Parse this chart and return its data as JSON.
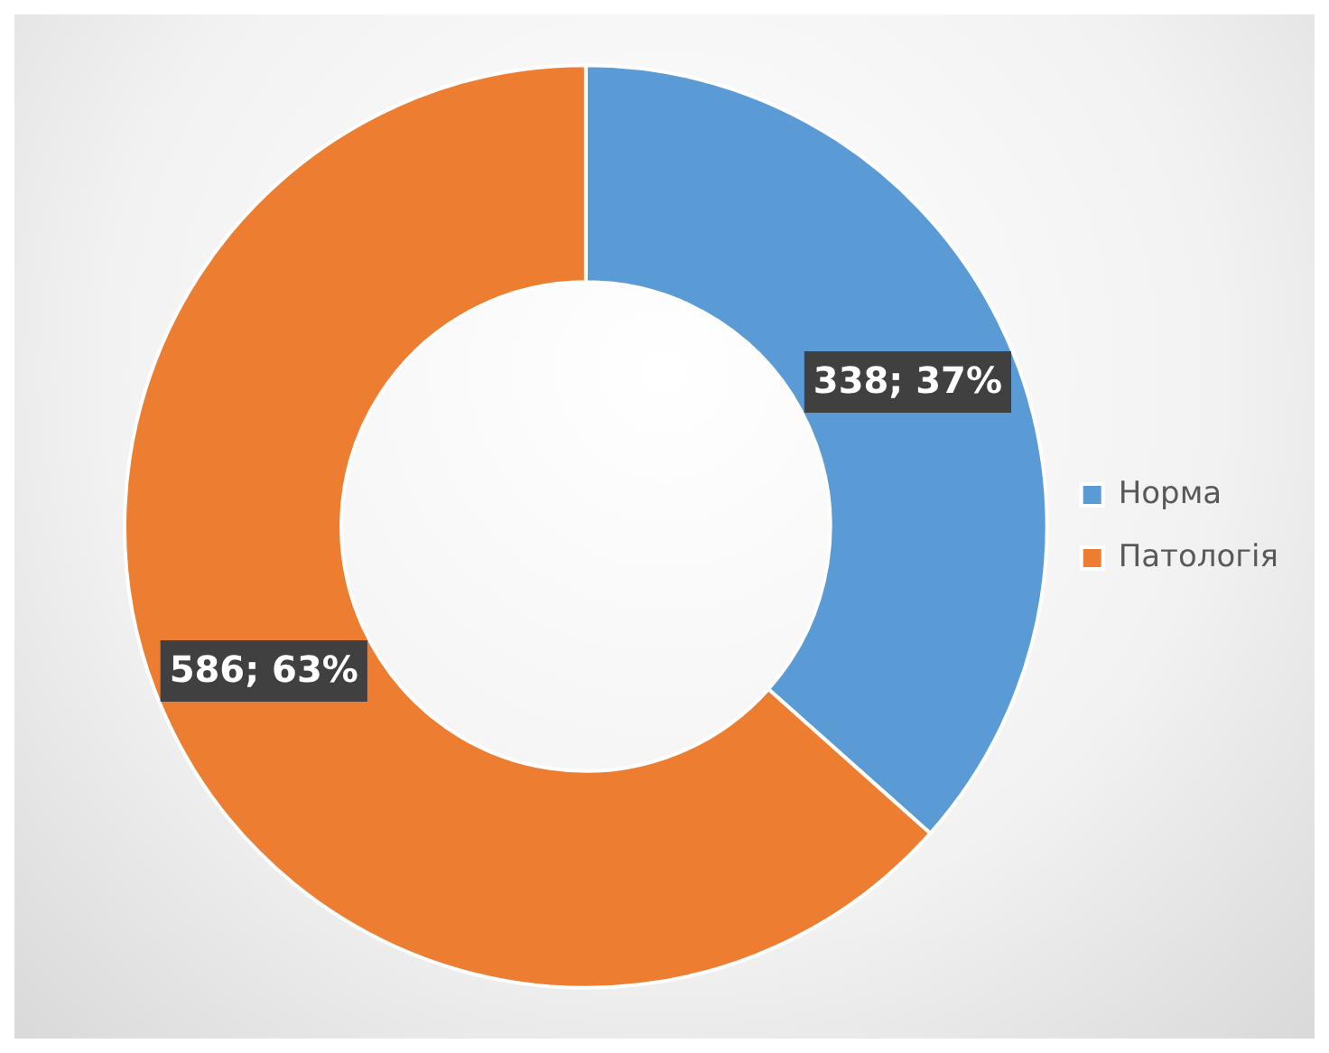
{
  "chart_data": {
    "type": "donut",
    "categories": [
      "Норма",
      "Патологія"
    ],
    "values": [
      338,
      586
    ],
    "colors": [
      "#5b9bd5",
      "#ed7d31"
    ],
    "value_labels": [
      "338; 37%",
      "586; 63%"
    ],
    "legend": "right"
  }
}
